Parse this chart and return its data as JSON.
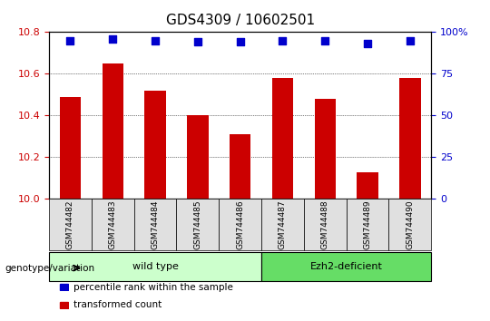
{
  "title": "GDS4309 / 10602501",
  "samples": [
    "GSM744482",
    "GSM744483",
    "GSM744484",
    "GSM744485",
    "GSM744486",
    "GSM744487",
    "GSM744488",
    "GSM744489",
    "GSM744490"
  ],
  "transformed_counts": [
    10.49,
    10.65,
    10.52,
    10.4,
    10.31,
    10.58,
    10.48,
    10.13,
    10.58
  ],
  "percentile_ranks": [
    95,
    96,
    95,
    94,
    94,
    95,
    95,
    93,
    95
  ],
  "ylim_left": [
    10.0,
    10.8
  ],
  "ylim_right": [
    0,
    100
  ],
  "yticks_left": [
    10.0,
    10.2,
    10.4,
    10.6,
    10.8
  ],
  "yticks_right": [
    0,
    25,
    50,
    75,
    100
  ],
  "bar_color": "#cc0000",
  "scatter_color": "#0000cc",
  "grid_color": "#000000",
  "groups": [
    {
      "label": "wild type",
      "start": 0,
      "end": 4,
      "color": "#ccffcc"
    },
    {
      "label": "Ezh2-deficient",
      "start": 5,
      "end": 8,
      "color": "#66dd66"
    }
  ],
  "genotype_label": "genotype/variation",
  "legend_items": [
    {
      "color": "#cc0000",
      "label": "transformed count"
    },
    {
      "color": "#0000cc",
      "label": "percentile rank within the sample"
    }
  ],
  "background_color": "#ffffff",
  "plot_bg_color": "#ffffff",
  "tick_label_color_left": "#cc0000",
  "tick_label_color_right": "#0000cc",
  "title_fontsize": 11
}
